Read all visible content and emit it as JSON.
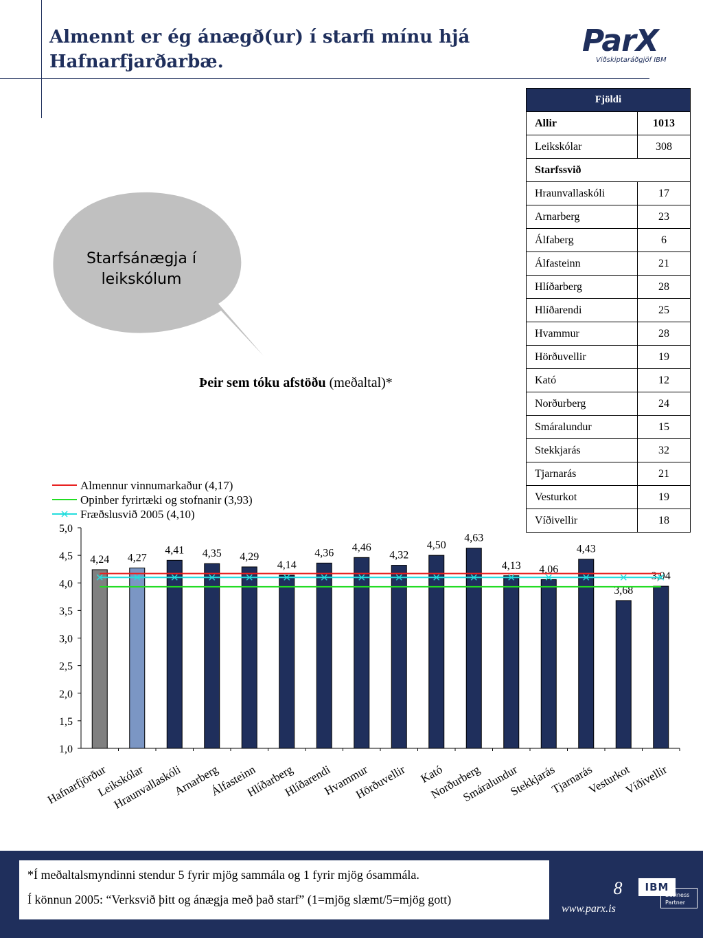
{
  "title": "Almennt er ég ánægð(ur) í starfi mínu hjá Hafnarfjarðarbæ.",
  "logo": {
    "main": "ParX",
    "sub": "Viðskiptaráðgjöf IBM"
  },
  "count_table": {
    "header": "Fjöldi",
    "rows": [
      {
        "label": "Allir",
        "value": "1013",
        "bold": true
      },
      {
        "label": "Leikskólar",
        "value": "308"
      },
      {
        "label": "Starfssvið",
        "value": "",
        "section": true
      },
      {
        "label": "Hraunvallaskóli",
        "value": "17"
      },
      {
        "label": "Arnarberg",
        "value": "23"
      },
      {
        "label": "Álfaberg",
        "value": "6"
      },
      {
        "label": "Álfasteinn",
        "value": "21"
      },
      {
        "label": "Hlíðarberg",
        "value": "28"
      },
      {
        "label": "Hlíðarendi",
        "value": "25"
      },
      {
        "label": "Hvammur",
        "value": "28"
      },
      {
        "label": "Hörðuvellir",
        "value": "19"
      },
      {
        "label": "Kató",
        "value": "12"
      },
      {
        "label": "Norðurberg",
        "value": "24"
      },
      {
        "label": "Smáralundur",
        "value": "15"
      },
      {
        "label": "Stekkjarás",
        "value": "32"
      },
      {
        "label": "Tjarnarás",
        "value": "21"
      },
      {
        "label": "Vesturkot",
        "value": "19"
      },
      {
        "label": "Víðivellir",
        "value": "18"
      }
    ]
  },
  "bubble": {
    "text": "Starfsánægja í leikskólum"
  },
  "chart_heading": {
    "bold": "Þeir sem tóku afstöðu",
    "normal": " (meðaltal)*"
  },
  "chart_data": {
    "type": "bar",
    "categories": [
      "Hafnarfjörður",
      "Leikskólar",
      "Hraunvallaskóli",
      "Arnarberg",
      "Álfasteinn",
      "Hlíðarberg",
      "Hlíðarendi",
      "Hvammur",
      "Hörðuvellir",
      "Kató",
      "Norðurberg",
      "Smáralundur",
      "Stekkjarás",
      "Tjarnarás",
      "Vesturkot",
      "Víðivellir"
    ],
    "values": [
      4.24,
      4.27,
      4.41,
      4.35,
      4.29,
      4.14,
      4.36,
      4.46,
      4.32,
      4.5,
      4.63,
      4.13,
      4.06,
      4.43,
      3.68,
      3.94
    ],
    "value_labels": [
      "4,24",
      "4,27",
      "4,41",
      "4,35",
      "4,29",
      "4,14",
      "4,36",
      "4,46",
      "4,32",
      "4,50",
      "4,63",
      "4,13",
      "4,06",
      "4,43",
      "3,68",
      "3,94"
    ],
    "bar_colors": [
      "#808080",
      "#7b96c4",
      "#1f2f5c",
      "#1f2f5c",
      "#1f2f5c",
      "#1f2f5c",
      "#1f2f5c",
      "#1f2f5c",
      "#1f2f5c",
      "#1f2f5c",
      "#1f2f5c",
      "#1f2f5c",
      "#1f2f5c",
      "#1f2f5c",
      "#1f2f5c",
      "#1f2f5c"
    ],
    "ylim": [
      1.0,
      5.0
    ],
    "yticks": [
      "1,0",
      "1,5",
      "2,0",
      "2,5",
      "3,0",
      "3,5",
      "4,0",
      "4,5",
      "5,0"
    ],
    "reference_lines": [
      {
        "name": "Almennur vinnumarkaður (4,17)",
        "value": 4.17,
        "color": "#e8201f",
        "marker": "none"
      },
      {
        "name": "Opinber fyrirtæki og stofnanir (3,93)",
        "value": 3.93,
        "color": "#22dd22",
        "marker": "none"
      },
      {
        "name": "Fræðslusvið 2005 (4,10)",
        "value": 4.1,
        "color": "#22dddd",
        "marker": "x"
      }
    ],
    "legend_position": "top-left",
    "grid": false
  },
  "footer": {
    "note1": "*Í meðaltalsmyndinni stendur 5 fyrir mjög sammála og 1 fyrir mjög ósammála.",
    "note2": "Í könnun 2005: “Verksvið þitt og ánægja með það starf” (1=mjög slæmt/5=mjög gott)",
    "page": "8",
    "site": "www.parx.is",
    "ibm": "IBM",
    "ibm_sub": "Business Partner"
  }
}
